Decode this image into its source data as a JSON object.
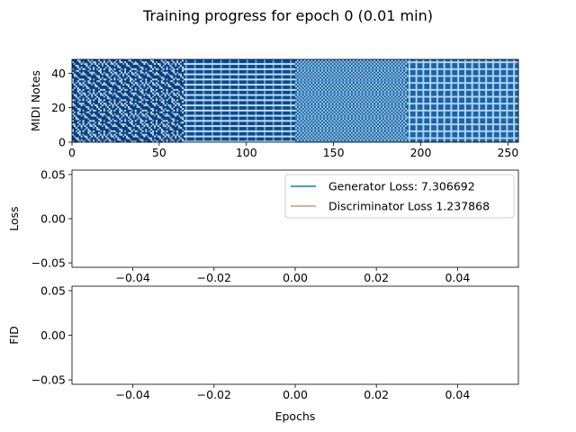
{
  "figure": {
    "suptitle": "Training progress for epoch 0 (0.01 min)"
  },
  "chart_data": [
    {
      "type": "heatmap",
      "ylabel": "MIDI Notes",
      "xlabel": "",
      "xlim": [
        0,
        256
      ],
      "ylim": [
        0,
        48
      ],
      "xticks": [
        "0",
        "50",
        "100",
        "150",
        "200",
        "250"
      ],
      "xtick_values": [
        0,
        50,
        100,
        150,
        200,
        250
      ],
      "yticks": [
        "0",
        "20",
        "40"
      ],
      "ytick_values": [
        0,
        20,
        40
      ],
      "colormap": "Blues",
      "columns": 256,
      "rows": 48,
      "segments": [
        {
          "x_start": 0,
          "x_end": 64,
          "pattern": "diamond"
        },
        {
          "x_start": 64,
          "x_end": 128,
          "pattern": "stripe"
        },
        {
          "x_start": 128,
          "x_end": 192,
          "pattern": "checker"
        },
        {
          "x_start": 192,
          "x_end": 256,
          "pattern": "mesh"
        }
      ]
    },
    {
      "type": "line",
      "ylabel": "Loss",
      "xlabel": "",
      "xlim": [
        -0.055,
        0.055
      ],
      "ylim": [
        -0.055,
        0.055
      ],
      "xticks": [
        "−0.04",
        "−0.02",
        "0.00",
        "0.02",
        "0.04"
      ],
      "xtick_values": [
        -0.04,
        -0.02,
        0.0,
        0.02,
        0.04
      ],
      "yticks": [
        "−0.05",
        "0.00",
        "0.05"
      ],
      "ytick_values": [
        -0.05,
        0.0,
        0.05
      ],
      "legend_position": "top-right",
      "series": [
        {
          "name": "Generator Loss: 7.306692",
          "color": "#1f77b4",
          "x": [],
          "y": []
        },
        {
          "name": "Discriminator Loss 1.237868",
          "color": "#c49a82",
          "x": [],
          "y": []
        }
      ]
    },
    {
      "type": "line",
      "ylabel": "FID",
      "xlabel": "Epochs",
      "xlim": [
        -0.055,
        0.055
      ],
      "ylim": [
        -0.055,
        0.055
      ],
      "xticks": [
        "−0.04",
        "−0.02",
        "0.00",
        "0.02",
        "0.04"
      ],
      "xtick_values": [
        -0.04,
        -0.02,
        0.0,
        0.02,
        0.04
      ],
      "yticks": [
        "−0.05",
        "0.00",
        "0.05"
      ],
      "ytick_values": [
        -0.05,
        0.0,
        0.05
      ],
      "series": []
    }
  ]
}
